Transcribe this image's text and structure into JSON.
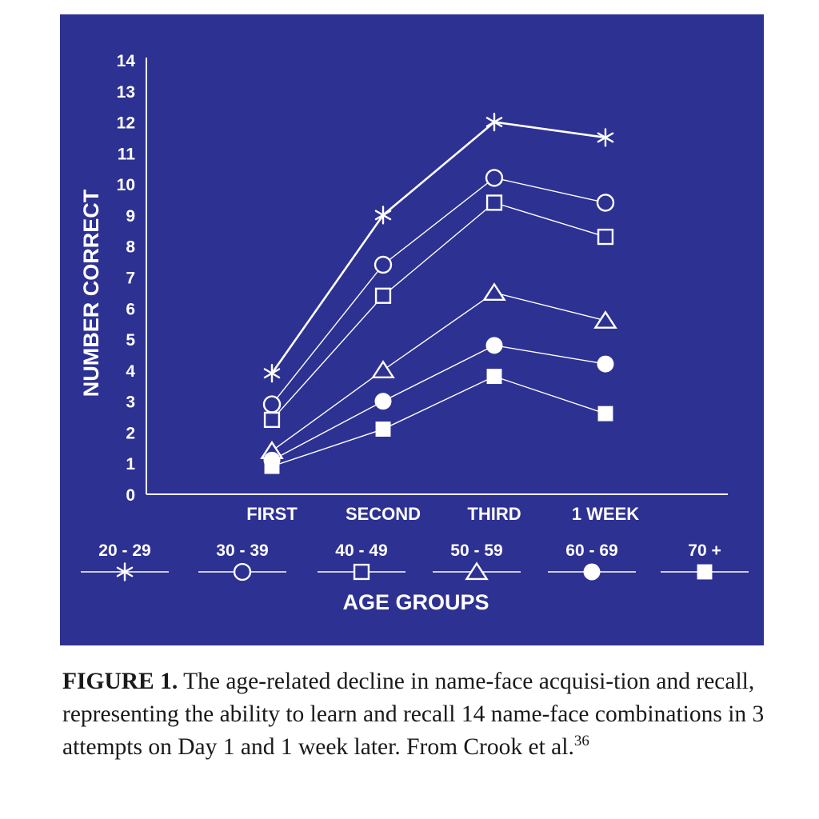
{
  "chart_data": {
    "type": "line",
    "title": "",
    "ylabel": "NUMBER CORRECT",
    "xlabel": "AGE GROUPS",
    "ylim": [
      0,
      14
    ],
    "yticks": [
      "0",
      "1",
      "2",
      "3",
      "4",
      "5",
      "6",
      "7",
      "8",
      "9",
      "10",
      "11",
      "12",
      "13",
      "14"
    ],
    "categories": [
      "FIRST",
      "SECOND",
      "THIRD",
      "1 WEEK"
    ],
    "series": [
      {
        "name": "20 - 29",
        "marker": "asterisk",
        "values": [
          3.9,
          9.0,
          12.0,
          11.5
        ]
      },
      {
        "name": "30 - 39",
        "marker": "circle-open",
        "values": [
          2.9,
          7.4,
          10.2,
          9.4
        ]
      },
      {
        "name": "40 - 49",
        "marker": "square-open",
        "values": [
          2.4,
          6.4,
          9.4,
          8.3
        ]
      },
      {
        "name": "50 - 59",
        "marker": "triangle-open",
        "values": [
          1.4,
          4.0,
          6.5,
          5.6
        ]
      },
      {
        "name": "60 - 69",
        "marker": "circle-filled",
        "values": [
          1.1,
          3.0,
          4.8,
          4.2
        ]
      },
      {
        "name": "70 +",
        "marker": "square-filled",
        "values": [
          0.9,
          2.1,
          3.8,
          2.6
        ]
      }
    ],
    "legend_position": "bottom",
    "colors": {
      "background": "#2d3192",
      "foreground": "#ffffff"
    }
  },
  "caption": {
    "label": "FIGURE 1.",
    "text": " The age-related decline in name-face acquisi-tion and recall, representing the ability to learn and recall 14 name-face combinations in 3 attempts on Day 1 and 1 week later. From Crook et al.",
    "reference": "36"
  }
}
